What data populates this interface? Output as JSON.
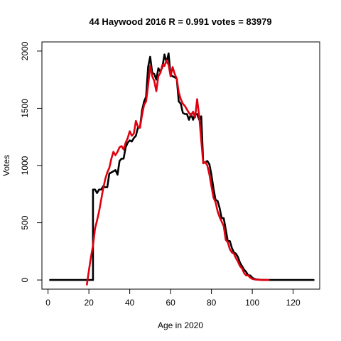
{
  "chart_data": {
    "type": "line",
    "title": "44 Haywood 2016 R = 0.991 votes = 83979",
    "xlabel": "Age in 2020",
    "ylabel": "Votes",
    "xlim": [
      -3,
      133
    ],
    "ylim": [
      -80,
      2080
    ],
    "xticks": [
      0,
      20,
      40,
      60,
      80,
      100,
      120
    ],
    "yticks": [
      0,
      500,
      1000,
      1500,
      2000
    ],
    "grid": false,
    "colors": {
      "black_series": "#000000",
      "red_series": "#e0000f"
    },
    "series": [
      {
        "color": "#000000",
        "x": [
          1,
          22,
          22,
          23,
          24,
          25,
          26,
          27,
          28,
          29,
          30,
          31,
          32,
          33,
          34,
          35,
          36,
          37,
          38,
          39,
          40,
          41,
          42,
          43,
          44,
          45,
          46,
          47,
          48,
          49,
          50,
          51,
          52,
          53,
          54,
          55,
          56,
          57,
          58,
          59,
          60,
          61,
          62,
          63,
          64,
          65,
          66,
          67,
          68,
          69,
          70,
          71,
          72,
          73,
          74,
          75,
          76,
          77,
          78,
          79,
          80,
          81,
          82,
          83,
          84,
          85,
          86,
          87,
          88,
          89,
          90,
          91,
          92,
          93,
          94,
          95,
          96,
          97,
          98,
          99,
          100,
          101,
          102,
          103,
          104,
          105,
          106,
          107,
          108,
          110,
          115,
          120,
          125,
          130
        ],
        "y": [
          0,
          0,
          790,
          790,
          760,
          790,
          790,
          820,
          810,
          810,
          930,
          940,
          950,
          960,
          920,
          1040,
          1060,
          1060,
          1160,
          1200,
          1220,
          1210,
          1240,
          1260,
          1330,
          1330,
          1480,
          1560,
          1600,
          1860,
          1950,
          1810,
          1800,
          1750,
          1850,
          1820,
          1860,
          1970,
          1900,
          1980,
          1790,
          1780,
          1770,
          1760,
          1560,
          1540,
          1460,
          1450,
          1450,
          1400,
          1450,
          1400,
          1450,
          1450,
          1400,
          1430,
          1020,
          1030,
          1040,
          1010,
          920,
          800,
          700,
          690,
          630,
          540,
          540,
          440,
          340,
          340,
          280,
          240,
          230,
          200,
          150,
          120,
          90,
          70,
          40,
          40,
          20,
          10,
          5,
          3,
          2,
          1,
          0,
          0,
          0,
          0,
          0,
          0,
          0,
          0
        ]
      },
      {
        "color": "#e0000f",
        "x": [
          19,
          20,
          21,
          22,
          23,
          24,
          25,
          26,
          27,
          28,
          29,
          30,
          31,
          32,
          33,
          34,
          35,
          36,
          37,
          38,
          39,
          40,
          41,
          42,
          43,
          44,
          45,
          46,
          47,
          48,
          49,
          50,
          51,
          52,
          53,
          54,
          55,
          56,
          57,
          58,
          59,
          60,
          61,
          62,
          63,
          64,
          65,
          66,
          67,
          68,
          69,
          70,
          71,
          72,
          73,
          74,
          75,
          76,
          77,
          78,
          79,
          80,
          81,
          82,
          83,
          84,
          85,
          86,
          87,
          88,
          89,
          90,
          91,
          92,
          93,
          94,
          95,
          96,
          97,
          98,
          99,
          100,
          101,
          102,
          103,
          104,
          105,
          106,
          107,
          108
        ],
        "y": [
          -40,
          80,
          200,
          300,
          450,
          520,
          600,
          700,
          800,
          880,
          940,
          980,
          1060,
          1120,
          1090,
          1120,
          1160,
          1170,
          1140,
          1200,
          1240,
          1300,
          1260,
          1280,
          1390,
          1340,
          1330,
          1440,
          1530,
          1560,
          1700,
          1870,
          1780,
          1740,
          1650,
          1780,
          1810,
          1880,
          1870,
          1920,
          1880,
          1780,
          1860,
          1800,
          1760,
          1640,
          1580,
          1540,
          1520,
          1490,
          1460,
          1440,
          1470,
          1420,
          1580,
          1430,
          1220,
          1020,
          1030,
          1000,
          920,
          820,
          720,
          680,
          600,
          550,
          510,
          470,
          350,
          330,
          270,
          240,
          230,
          190,
          160,
          120,
          100,
          60,
          40,
          40,
          20,
          10,
          5,
          3,
          2,
          1,
          0,
          0,
          0,
          0
        ]
      }
    ]
  }
}
